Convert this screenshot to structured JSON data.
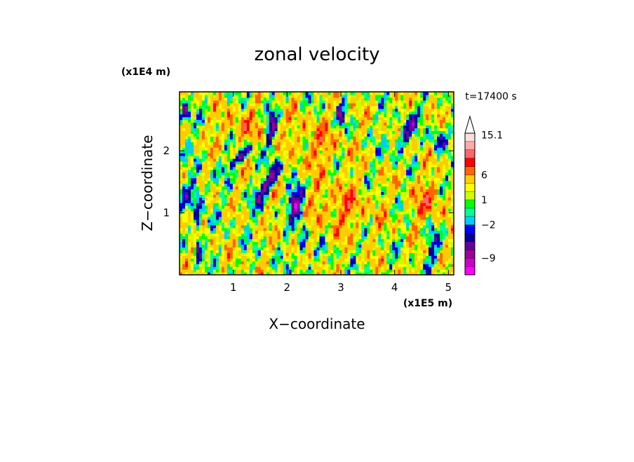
{
  "chart_data": {
    "type": "heatmap",
    "title": "zonal velocity",
    "xlabel": "X−coordinate",
    "ylabel": "Z−coordinate",
    "x_unit": "(x1E5 m)",
    "y_unit": "(x1E4 m)",
    "time_label": "t=17400 s",
    "xlim": [
      0.0,
      5.1
    ],
    "ylim": [
      0.0,
      2.95
    ],
    "x_ticks": [
      1,
      2,
      3,
      4,
      5
    ],
    "y_ticks": [
      1,
      2
    ],
    "colorbar": {
      "levels": [
        -13,
        -11,
        -9,
        -7,
        -5,
        -3,
        -2,
        -1,
        0,
        1,
        2,
        3,
        6,
        8,
        10,
        13,
        15.1
      ],
      "colors": [
        "#ff00ff",
        "#cc00cc",
        "#990099",
        "#660099",
        "#000099",
        "#0000ff",
        "#00ccff",
        "#00ff99",
        "#00ff00",
        "#ccff00",
        "#ffff00",
        "#ffcc00",
        "#ff6600",
        "#ff0000",
        "#ff6666",
        "#ffaaaa",
        "#ffdddd"
      ],
      "tick_labels": [
        "15.1",
        "6",
        "1",
        "−2",
        "−9"
      ],
      "tick_values": [
        15.1,
        6,
        1,
        -2,
        -9
      ],
      "extend": "max"
    },
    "value_range": [
      -13,
      15.1
    ],
    "field_description": "turbulent zonal velocity field, predominantly positive (yellow-orange) with negative (blue) streaks concentrated around x=1.5-2.5"
  }
}
